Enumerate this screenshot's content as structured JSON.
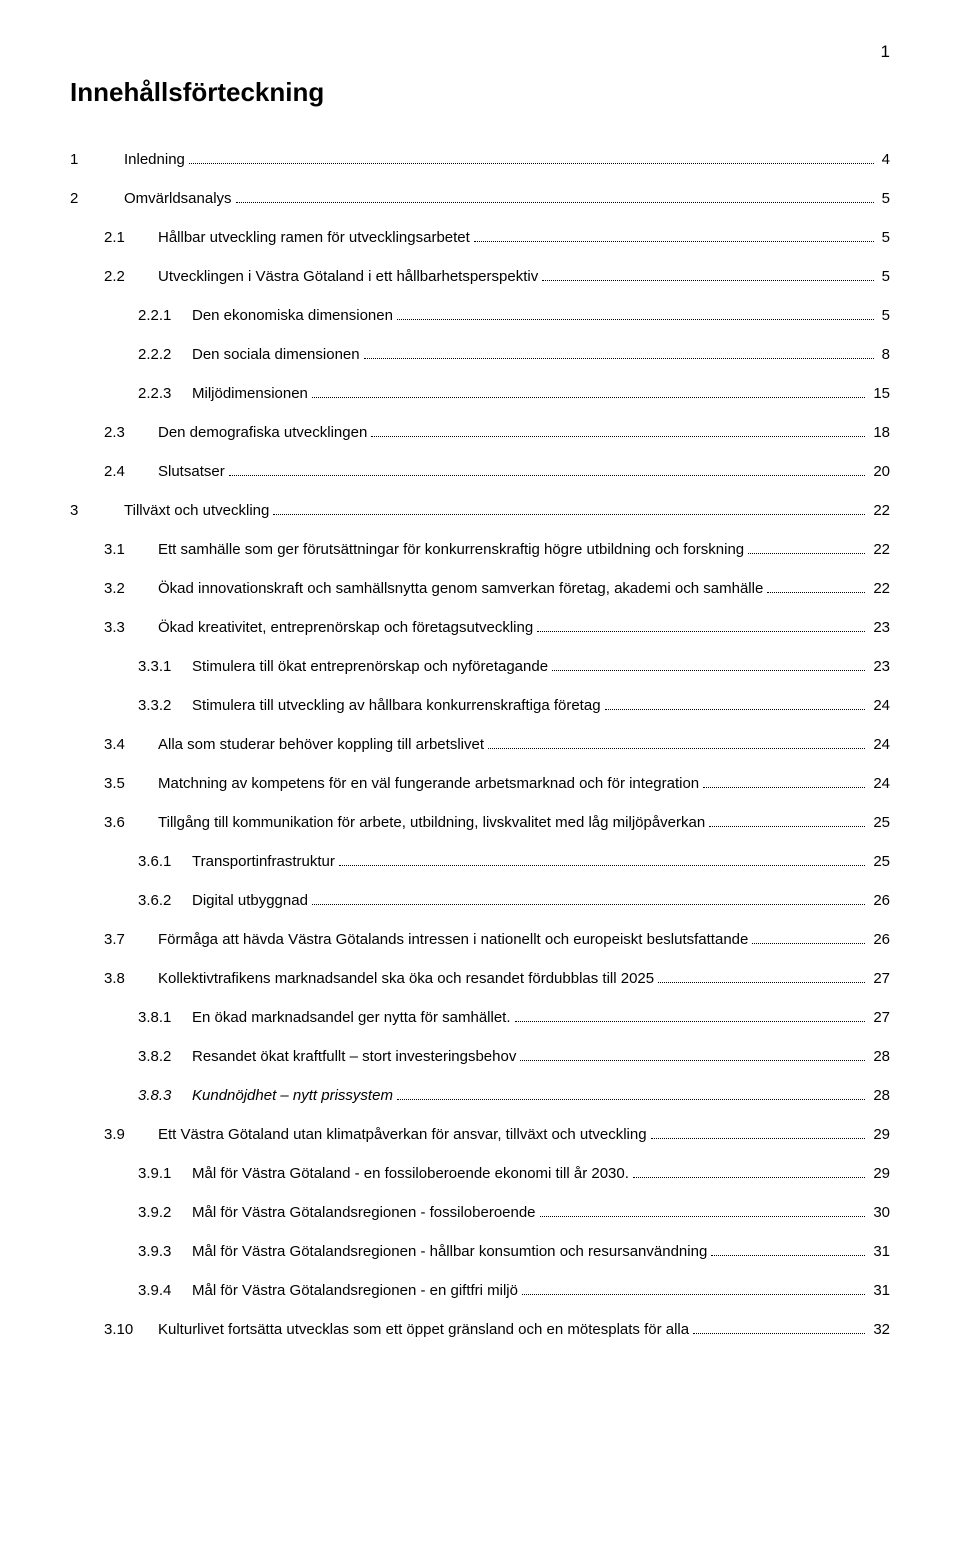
{
  "page_number": "1",
  "title": "Innehållsförteckning",
  "entries": [
    {
      "indent": 0,
      "num": "1",
      "text": "Inledning",
      "page": "4",
      "italic": false
    },
    {
      "indent": 0,
      "num": "2",
      "text": "Omvärldsanalys",
      "page": "5",
      "italic": false
    },
    {
      "indent": 1,
      "num": "2.1",
      "text": "Hållbar utveckling ramen för utvecklingsarbetet",
      "page": "5",
      "italic": false
    },
    {
      "indent": 1,
      "num": "2.2",
      "text": "Utvecklingen i Västra Götaland i ett hållbarhetsperspektiv",
      "page": "5",
      "italic": false
    },
    {
      "indent": 2,
      "num": "2.2.1",
      "text": "Den ekonomiska dimensionen",
      "page": "5",
      "italic": false
    },
    {
      "indent": 2,
      "num": "2.2.2",
      "text": "Den sociala dimensionen",
      "page": "8",
      "italic": false
    },
    {
      "indent": 2,
      "num": "2.2.3",
      "text": "Miljödimensionen",
      "page": "15",
      "italic": false
    },
    {
      "indent": 1,
      "num": "2.3",
      "text": "Den demografiska utvecklingen",
      "page": "18",
      "italic": false
    },
    {
      "indent": 1,
      "num": "2.4",
      "text": "Slutsatser",
      "page": "20",
      "italic": false
    },
    {
      "indent": 0,
      "num": "3",
      "text": "Tillväxt och utveckling",
      "page": "22",
      "italic": false
    },
    {
      "indent": 1,
      "num": "3.1",
      "text": "Ett samhälle som ger förutsättningar för konkurrenskraftig högre utbildning och forskning",
      "page": "22",
      "italic": false
    },
    {
      "indent": 1,
      "num": "3.2",
      "text": "Ökad innovationskraft och samhällsnytta genom samverkan företag, akademi och samhälle",
      "page": "22",
      "italic": false
    },
    {
      "indent": 1,
      "num": "3.3",
      "text": "Ökad kreativitet, entreprenörskap och företagsutveckling",
      "page": "23",
      "italic": false
    },
    {
      "indent": 2,
      "num": "3.3.1",
      "text": "Stimulera till ökat entreprenörskap och nyföretagande",
      "page": "23",
      "italic": false
    },
    {
      "indent": 2,
      "num": "3.3.2",
      "text": "Stimulera till utveckling av hållbara konkurrenskraftiga företag",
      "page": "24",
      "italic": false
    },
    {
      "indent": 1,
      "num": "3.4",
      "text": "Alla som studerar behöver koppling till arbetslivet",
      "page": "24",
      "italic": false
    },
    {
      "indent": 1,
      "num": "3.5",
      "text": "Matchning av kompetens för en väl fungerande arbetsmarknad och för integration",
      "page": "24",
      "italic": false
    },
    {
      "indent": 1,
      "num": "3.6",
      "text": "Tillgång till kommunikation för arbete, utbildning, livskvalitet med låg miljöpåverkan",
      "page": "25",
      "italic": false
    },
    {
      "indent": 2,
      "num": "3.6.1",
      "text": "Transportinfrastruktur",
      "page": "25",
      "italic": false
    },
    {
      "indent": 2,
      "num": "3.6.2",
      "text": "Digital utbyggnad",
      "page": "26",
      "italic": false
    },
    {
      "indent": 1,
      "num": "3.7",
      "text": "Förmåga att hävda Västra Götalands intressen i nationellt och europeiskt beslutsfattande",
      "page": "26",
      "italic": false
    },
    {
      "indent": 1,
      "num": "3.8",
      "text": "Kollektivtrafikens marknadsandel ska öka och resandet fördubblas till 2025",
      "page": "27",
      "italic": false
    },
    {
      "indent": 2,
      "num": "3.8.1",
      "text": "En ökad marknadsandel ger nytta för samhället.",
      "page": "27",
      "italic": false
    },
    {
      "indent": 2,
      "num": "3.8.2",
      "text": "Resandet ökat kraftfullt – stort investeringsbehov",
      "page": "28",
      "italic": false
    },
    {
      "indent": 2,
      "num": "3.8.3",
      "text": "Kundnöjdhet – nytt prissystem",
      "page": "28",
      "italic": true
    },
    {
      "indent": 1,
      "num": "3.9",
      "text": "Ett Västra Götaland utan klimatpåverkan för ansvar, tillväxt och utveckling",
      "page": "29",
      "italic": false
    },
    {
      "indent": 2,
      "num": "3.9.1",
      "text": "Mål för Västra Götaland - en fossiloberoende ekonomi till år 2030.",
      "page": "29",
      "italic": false
    },
    {
      "indent": 2,
      "num": "3.9.2",
      "text": "Mål för Västra Götalandsregionen - fossiloberoende",
      "page": "30",
      "italic": false
    },
    {
      "indent": 2,
      "num": "3.9.3",
      "text": "Mål för Västra Götalandsregionen - hållbar konsumtion och resursanvändning",
      "page": "31",
      "italic": false
    },
    {
      "indent": 2,
      "num": "3.9.4",
      "text": "Mål för Västra Götalandsregionen - en giftfri miljö",
      "page": "31",
      "italic": false
    },
    {
      "indent": 1,
      "num": "3.10",
      "text": "Kulturlivet fortsätta utvecklas som ett öppet gränsland och en mötesplats för alla",
      "page": "32",
      "italic": false
    }
  ]
}
